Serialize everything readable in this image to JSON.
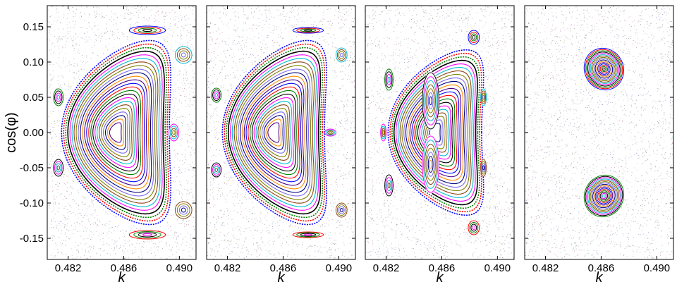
{
  "chart_data": [
    {
      "type": "scatter",
      "panel": "a",
      "xlabel": "k",
      "ylabel": "cos(φ)",
      "xlim": [
        0.4805,
        0.4912
      ],
      "ylim": [
        -0.18,
        0.18
      ],
      "xticks": [
        "0.482",
        "0.486",
        "0.490"
      ],
      "xtick_values": [
        0.482,
        0.486,
        0.49
      ],
      "yticks": [
        "0.15",
        "0.10",
        "0.05",
        "0.00",
        "-0.05",
        "-0.10",
        "-0.15"
      ],
      "ytick_values": [
        0.15,
        0.1,
        0.05,
        0.0,
        -0.05,
        -0.1,
        -0.15
      ],
      "background": "chaotic sea",
      "main_island": {
        "center": [
          0.4854,
          0.0
        ],
        "half_width": [
          0.0038,
          0.128
        ],
        "bend": 0.0024,
        "n_curves": 24
      },
      "satellite_islands": [
        {
          "center": [
            0.4877,
            0.145
          ],
          "rx": 0.0013,
          "ry": 0.006
        },
        {
          "center": [
            0.4877,
            -0.145
          ],
          "rx": 0.0013,
          "ry": 0.006
        },
        {
          "center": [
            0.4813,
            0.05
          ],
          "rx": 0.00035,
          "ry": 0.012
        },
        {
          "center": [
            0.4813,
            -0.05
          ],
          "rx": 0.00035,
          "ry": 0.012
        },
        {
          "center": [
            0.4896,
            0.0
          ],
          "rx": 0.00035,
          "ry": 0.012
        },
        {
          "center": [
            0.4903,
            0.11
          ],
          "rx": 0.0006,
          "ry": 0.012
        },
        {
          "center": [
            0.4903,
            -0.11
          ],
          "rx": 0.0006,
          "ry": 0.012
        }
      ]
    },
    {
      "type": "scatter",
      "panel": "b",
      "xlabel": "k",
      "xlim": [
        0.4805,
        0.4912
      ],
      "ylim": [
        -0.18,
        0.18
      ],
      "xticks": [
        "0.482",
        "0.486",
        "0.490"
      ],
      "xtick_values": [
        0.482,
        0.486,
        0.49
      ],
      "background": "chaotic sea",
      "main_island": {
        "center": [
          0.4853,
          0.0
        ],
        "half_width": [
          0.0036,
          0.128
        ],
        "bend": 0.0024,
        "n_curves": 24
      },
      "satellite_islands": [
        {
          "center": [
            0.4878,
            0.145
          ],
          "rx": 0.0011,
          "ry": 0.004
        },
        {
          "center": [
            0.4878,
            -0.145
          ],
          "rx": 0.0011,
          "ry": 0.004
        },
        {
          "center": [
            0.4812,
            0.053
          ],
          "rx": 0.00035,
          "ry": 0.01
        },
        {
          "center": [
            0.4812,
            -0.053
          ],
          "rx": 0.00035,
          "ry": 0.01
        },
        {
          "center": [
            0.4894,
            0.0
          ],
          "rx": 0.0004,
          "ry": 0.005
        },
        {
          "center": [
            0.4902,
            0.11
          ],
          "rx": 0.0004,
          "ry": 0.01
        },
        {
          "center": [
            0.4902,
            -0.11
          ],
          "rx": 0.0004,
          "ry": 0.01
        }
      ]
    },
    {
      "type": "scatter",
      "panel": "c",
      "xlabel": "k",
      "xlim": [
        0.4805,
        0.4912
      ],
      "ylim": [
        -0.18,
        0.18
      ],
      "xticks": [
        "0.482",
        "0.486",
        "0.490"
      ],
      "xtick_values": [
        0.482,
        0.486,
        0.49
      ],
      "background": "chaotic sea",
      "main_island": {
        "center": [
          0.4855,
          0.0
        ],
        "half_width": [
          0.0033,
          0.115
        ],
        "bend": 0.0022,
        "n_curves": 22
      },
      "inner_islands": [
        {
          "center": [
            0.4852,
            0.045
          ],
          "rx": 0.0006,
          "ry": 0.04
        },
        {
          "center": [
            0.4852,
            -0.045
          ],
          "rx": 0.0006,
          "ry": 0.04
        }
      ],
      "satellite_islands": [
        {
          "center": [
            0.4883,
            0.135
          ],
          "rx": 0.0004,
          "ry": 0.01
        },
        {
          "center": [
            0.4883,
            -0.135
          ],
          "rx": 0.0004,
          "ry": 0.01
        },
        {
          "center": [
            0.4822,
            0.075
          ],
          "rx": 0.0003,
          "ry": 0.015
        },
        {
          "center": [
            0.4822,
            -0.075
          ],
          "rx": 0.0003,
          "ry": 0.015
        },
        {
          "center": [
            0.4818,
            0.0
          ],
          "rx": 0.0002,
          "ry": 0.012
        },
        {
          "center": [
            0.489,
            0.05
          ],
          "rx": 0.0002,
          "ry": 0.012
        },
        {
          "center": [
            0.489,
            -0.05
          ],
          "rx": 0.0002,
          "ry": 0.012
        }
      ]
    },
    {
      "type": "scatter",
      "panel": "d",
      "xlabel": "k",
      "xlim": [
        0.4805,
        0.4912
      ],
      "ylim": [
        -0.18,
        0.18
      ],
      "xticks": [
        "0.482",
        "0.486",
        "0.490"
      ],
      "xtick_values": [
        0.482,
        0.486,
        0.49
      ],
      "background": "chaotic sea",
      "twin_islands": [
        {
          "center": [
            0.4862,
            0.09
          ],
          "rx": 0.0014,
          "ry": 0.03,
          "tilt": -0.45
        },
        {
          "center": [
            0.4862,
            -0.09
          ],
          "rx": 0.0014,
          "ry": 0.03,
          "tilt": 0.45
        }
      ]
    }
  ],
  "palette": [
    "#0000ff",
    "#ff0000",
    "#008000",
    "#000000",
    "#ff00ff",
    "#00bcd4",
    "#8b4513",
    "#808000",
    "#7b68ee",
    "#000080",
    "#ff8c00",
    "#4b0082"
  ]
}
